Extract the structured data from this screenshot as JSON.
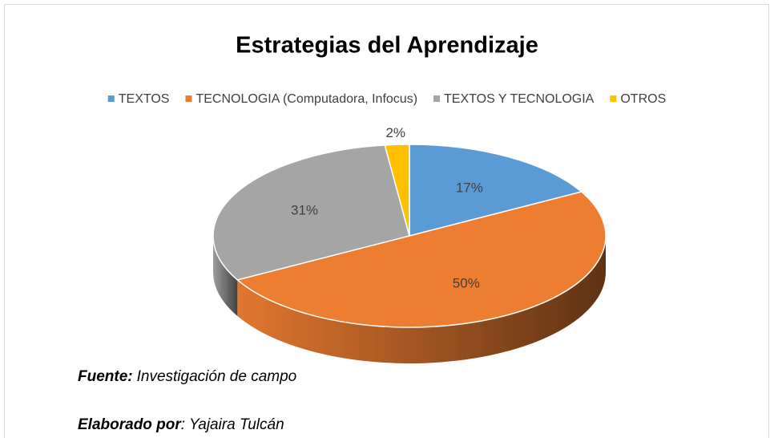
{
  "chart_data": {
    "type": "pie",
    "title": "Estrategias del Aprendizaje",
    "categories": [
      "TEXTOS",
      "TECNOLOGIA (Computadora, Infocus)",
      "TEXTOS Y TECNOLOGIA",
      "OTROS"
    ],
    "values": [
      17,
      50,
      31,
      2
    ],
    "value_labels": [
      "17%",
      "50%",
      "31%",
      "2%"
    ],
    "colors": [
      "#5b9bd5",
      "#ed7d31",
      "#a5a5a5",
      "#ffc000"
    ],
    "legend": "top",
    "source": {
      "label": "Fuente:",
      "text": "Investigación de campo"
    },
    "credit": {
      "label": "Elaborado por",
      "text": ": Yajaira Tulcán"
    }
  }
}
